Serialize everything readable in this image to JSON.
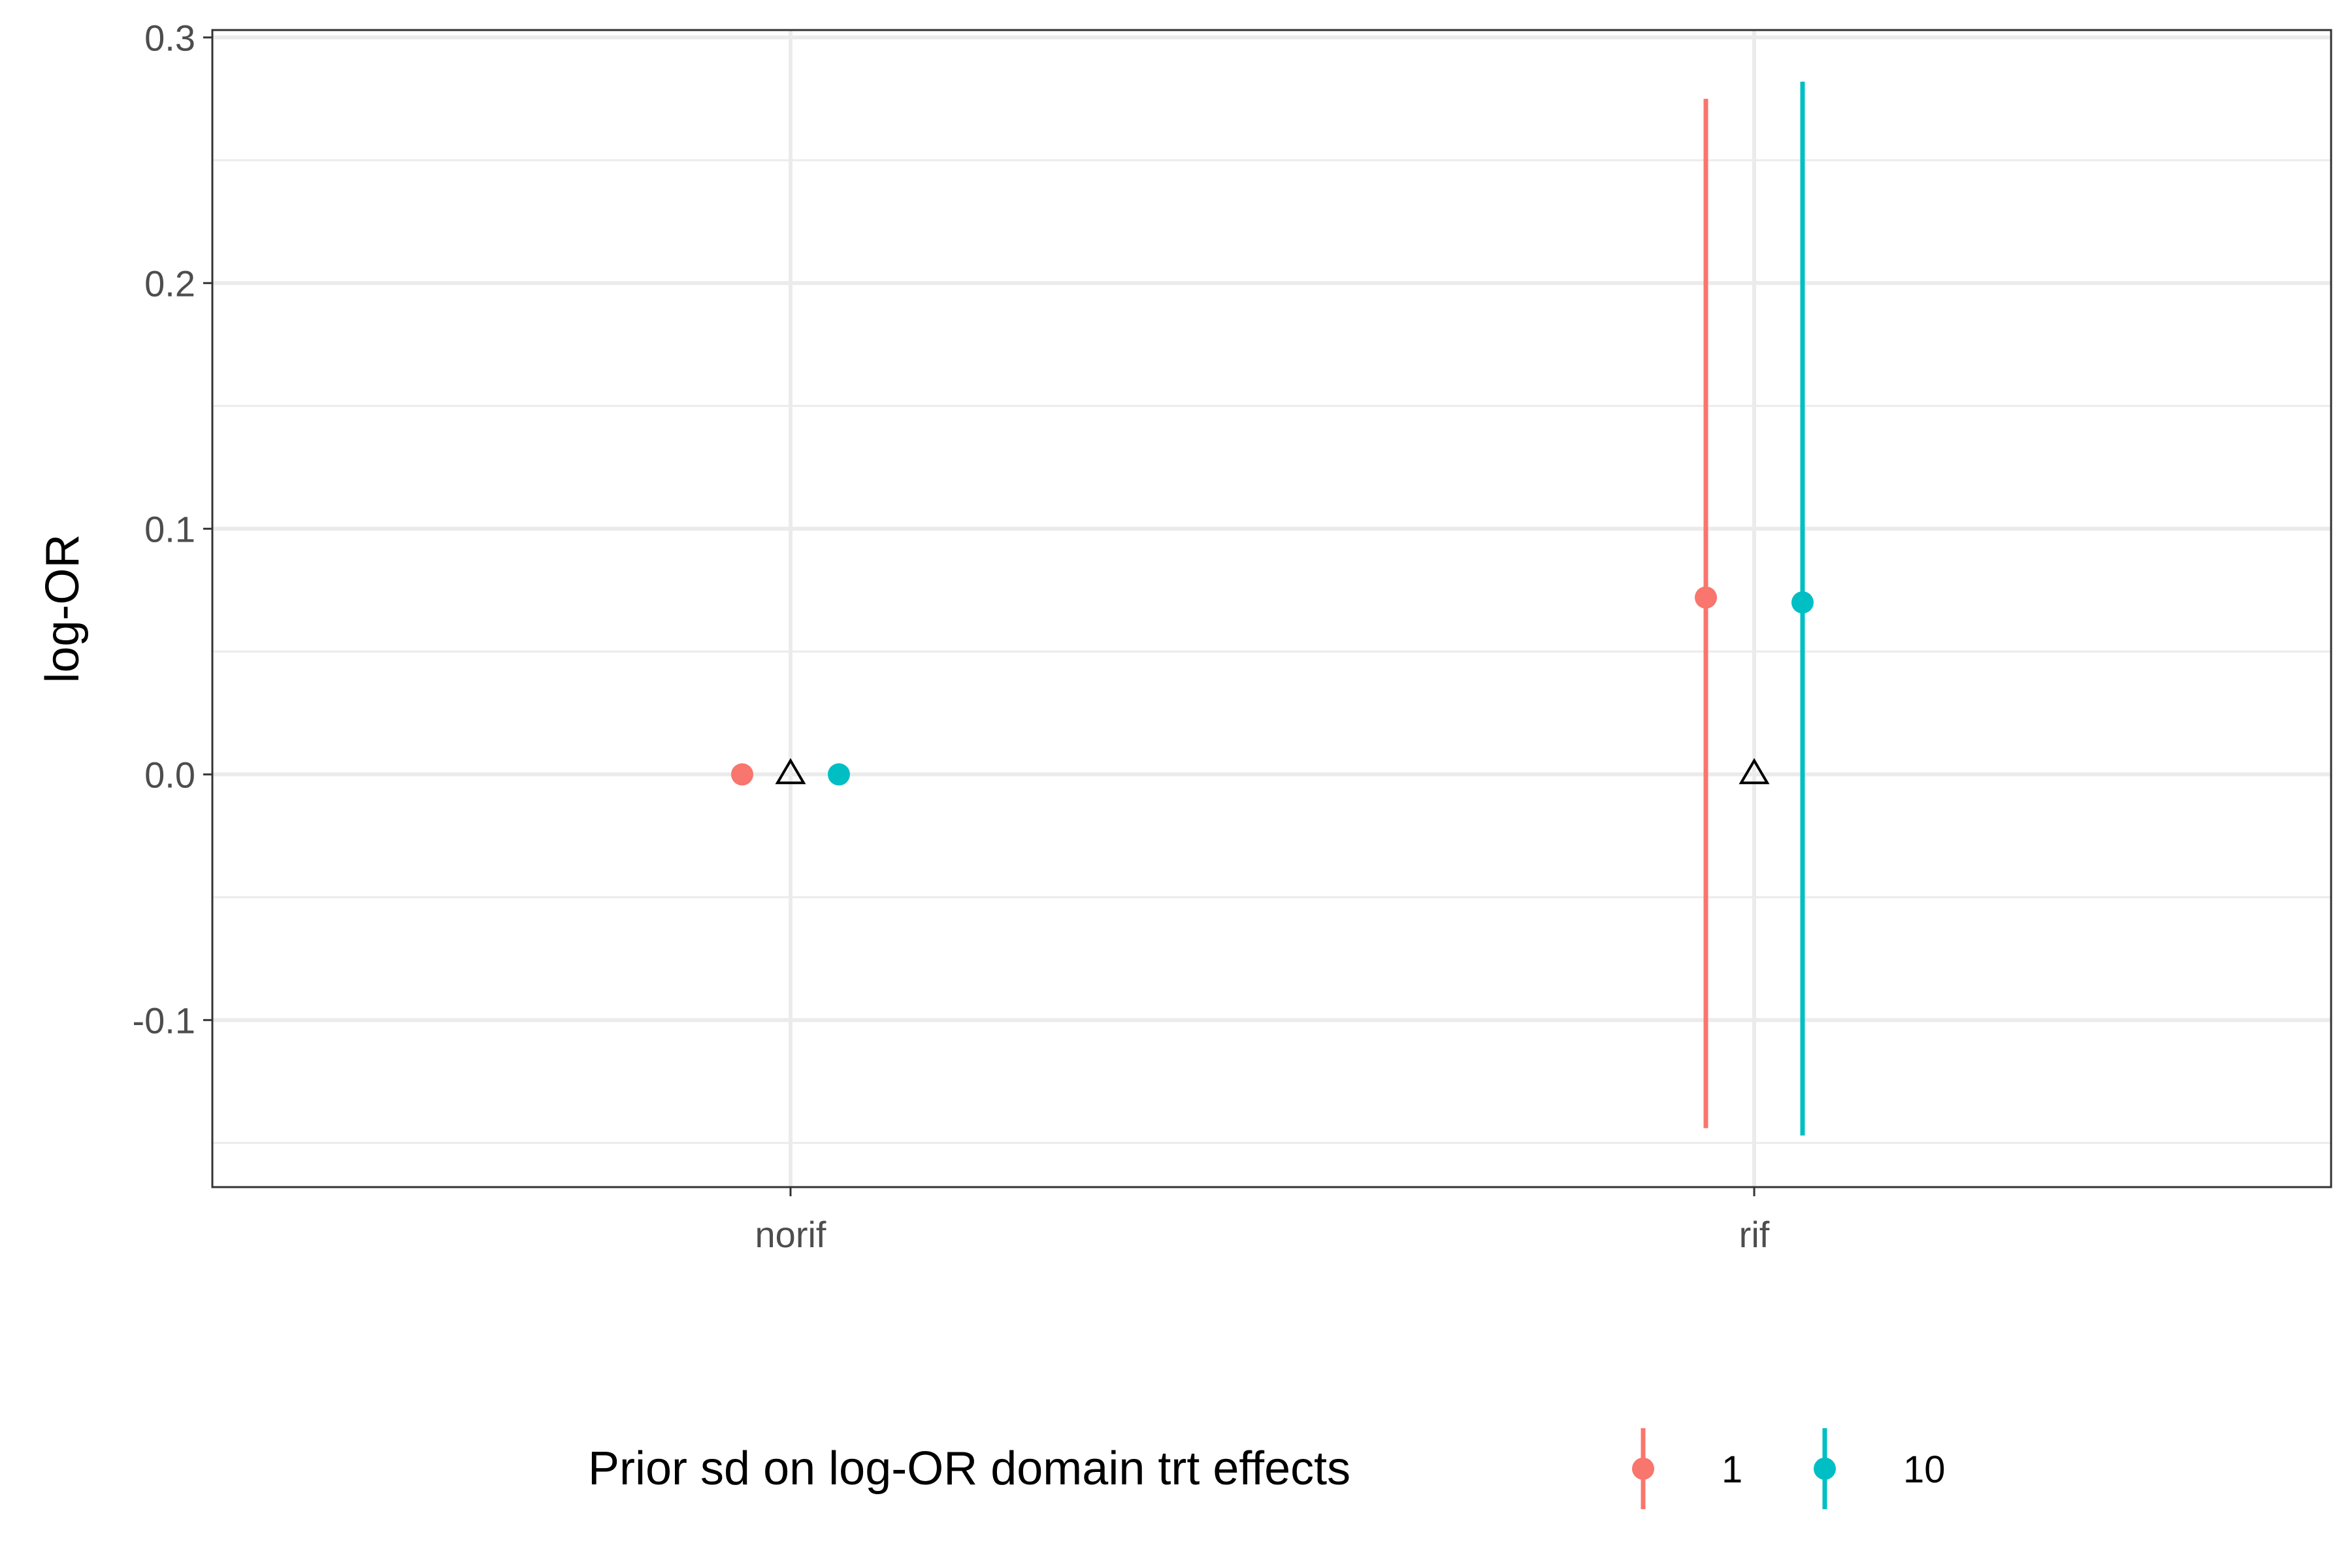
{
  "chart_data": {
    "type": "scatter",
    "ylabel": "log-OR",
    "xlabel": "",
    "categories": [
      "norif",
      "rif"
    ],
    "ylim": [
      -0.168,
      0.303
    ],
    "y_ticks": [
      -0.1,
      0.0,
      0.1,
      0.2,
      0.3
    ],
    "y_tick_labels": [
      "-0.1",
      "0.0",
      "0.1",
      "0.2",
      "0.3"
    ],
    "grid": true,
    "legend": {
      "title": "Prior sd on log-OR domain trt effects",
      "position": "bottom"
    },
    "series": [
      {
        "name": "1",
        "color": "#F8766D",
        "points": [
          {
            "category": "norif",
            "y": 0.0,
            "lower": 0.0,
            "upper": 0.0
          },
          {
            "category": "rif",
            "y": 0.072,
            "lower": -0.144,
            "upper": 0.275
          }
        ]
      },
      {
        "name": "10",
        "color": "#00BFC4",
        "points": [
          {
            "category": "norif",
            "y": 0.0,
            "lower": 0.0,
            "upper": 0.0
          },
          {
            "category": "rif",
            "y": 0.07,
            "lower": -0.147,
            "upper": 0.282
          }
        ]
      }
    ],
    "reference_points": [
      {
        "category": "norif",
        "y": 0.0,
        "marker": "triangle-open"
      },
      {
        "category": "rif",
        "y": 0.0,
        "marker": "triangle-open"
      }
    ]
  }
}
